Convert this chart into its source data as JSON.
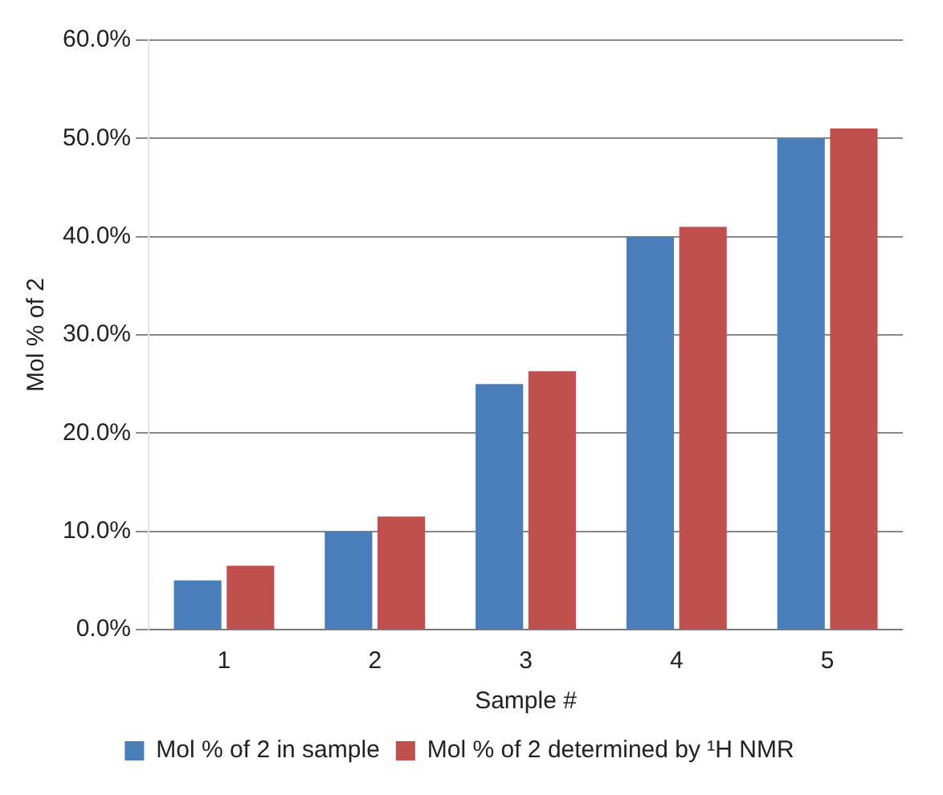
{
  "chart_data": {
    "type": "bar",
    "xlabel": "Sample #",
    "ylabel": "Mol % of 2",
    "categories": [
      "1",
      "2",
      "3",
      "4",
      "5"
    ],
    "series": [
      {
        "name": "Mol % of 2 in sample",
        "color": "#4a7ebb",
        "values": [
          5,
          10,
          25,
          40,
          50
        ]
      },
      {
        "name": "Mol % of 2 determined by ¹H NMR",
        "color": "#c0504d",
        "values": [
          6.5,
          11.5,
          26.3,
          41,
          51
        ]
      }
    ],
    "ylim": [
      0,
      60
    ],
    "yticks": [
      {
        "value": 0,
        "label": "0.0%"
      },
      {
        "value": 10,
        "label": "10.0%"
      },
      {
        "value": 20,
        "label": "20.0%"
      },
      {
        "value": 30,
        "label": "30.0%"
      },
      {
        "value": 40,
        "label": "40.0%"
      },
      {
        "value": 50,
        "label": "50.0%"
      },
      {
        "value": 60,
        "label": "60.0%"
      }
    ],
    "grid": "y",
    "legend": "bottom"
  }
}
